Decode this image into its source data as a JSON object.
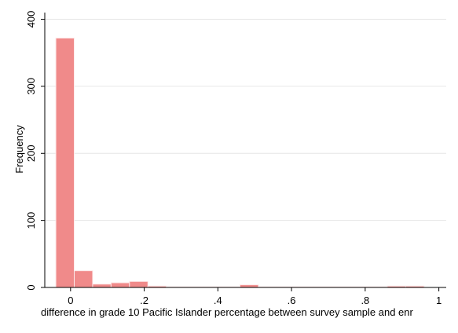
{
  "chart_data": {
    "type": "bar",
    "xlabel": "difference in grade 10 Pacific Islander percentage between survey sample and enr",
    "ylabel": "Frequency",
    "xlim": [
      -0.07,
      1.02
    ],
    "ylim": [
      0,
      410
    ],
    "x_ticks": [
      {
        "value": 0,
        "label": "0"
      },
      {
        "value": 0.2,
        "label": ".2"
      },
      {
        "value": 0.4,
        "label": ".4"
      },
      {
        "value": 0.6,
        "label": ".6"
      },
      {
        "value": 0.8,
        "label": ".8"
      },
      {
        "value": 1,
        "label": "1"
      }
    ],
    "y_ticks": [
      {
        "value": 0,
        "label": "0"
      },
      {
        "value": 100,
        "label": "100"
      },
      {
        "value": 200,
        "label": "200"
      },
      {
        "value": 300,
        "label": "300"
      },
      {
        "value": 400,
        "label": "400"
      }
    ],
    "bins": [
      {
        "x0": -0.04,
        "x1": 0.01,
        "count": 372
      },
      {
        "x0": 0.01,
        "x1": 0.06,
        "count": 25
      },
      {
        "x0": 0.06,
        "x1": 0.11,
        "count": 5
      },
      {
        "x0": 0.11,
        "x1": 0.16,
        "count": 7
      },
      {
        "x0": 0.16,
        "x1": 0.21,
        "count": 9
      },
      {
        "x0": 0.21,
        "x1": 0.26,
        "count": 2
      },
      {
        "x0": 0.26,
        "x1": 0.31,
        "count": 1
      },
      {
        "x0": 0.31,
        "x1": 0.36,
        "count": 1
      },
      {
        "x0": 0.36,
        "x1": 0.41,
        "count": 1
      },
      {
        "x0": 0.41,
        "x1": 0.46,
        "count": 1
      },
      {
        "x0": 0.46,
        "x1": 0.51,
        "count": 4
      },
      {
        "x0": 0.51,
        "x1": 0.56,
        "count": 1
      },
      {
        "x0": 0.56,
        "x1": 0.61,
        "count": 1
      },
      {
        "x0": 0.61,
        "x1": 0.66,
        "count": 1
      },
      {
        "x0": 0.66,
        "x1": 0.71,
        "count": 1
      },
      {
        "x0": 0.71,
        "x1": 0.76,
        "count": 1
      },
      {
        "x0": 0.76,
        "x1": 0.81,
        "count": 1
      },
      {
        "x0": 0.81,
        "x1": 0.86,
        "count": 1
      },
      {
        "x0": 0.86,
        "x1": 0.91,
        "count": 2
      },
      {
        "x0": 0.91,
        "x1": 0.96,
        "count": 2
      }
    ],
    "grid": true,
    "bar_color": "#f08a8a",
    "bar_edge_color": "#fdeaea",
    "grid_color": "#e6e6e6",
    "axis_color": "#000000"
  }
}
